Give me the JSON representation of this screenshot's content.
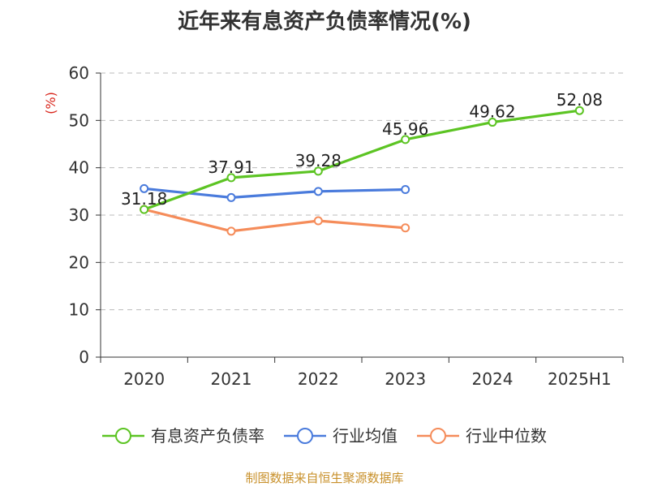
{
  "chart_data": {
    "type": "line",
    "title": "近年来有息资产负债率情况(%)",
    "ylabel": "(%)",
    "xlabel": "",
    "categories": [
      "2020",
      "2021",
      "2022",
      "2023",
      "2024",
      "2025H1"
    ],
    "ylim": [
      0,
      60
    ],
    "yticks": [
      0,
      10,
      20,
      30,
      40,
      50,
      60
    ],
    "grid": "horizontal dashed",
    "legend_position": "bottom",
    "series": [
      {
        "name": "有息资产负债率",
        "color": "#5cc423",
        "values": [
          31.18,
          37.91,
          39.28,
          45.96,
          49.62,
          52.08
        ],
        "data_labels": [
          "31.18",
          "37.91",
          "39.28",
          "45.96",
          "49.62",
          "52.08"
        ]
      },
      {
        "name": "行业均值",
        "color": "#4a7bdc",
        "values": [
          35.6,
          33.7,
          35.0,
          35.4,
          null,
          null
        ]
      },
      {
        "name": "行业中位数",
        "color": "#f58c5a",
        "values": [
          31.2,
          26.6,
          28.8,
          27.3,
          null,
          null
        ]
      }
    ]
  },
  "source": "制图数据来自恒生聚源数据库",
  "colors": {
    "axis": "#333333",
    "grid": "#bbbbbb",
    "ylabel": "#d9261c",
    "source": "#c8902a"
  }
}
